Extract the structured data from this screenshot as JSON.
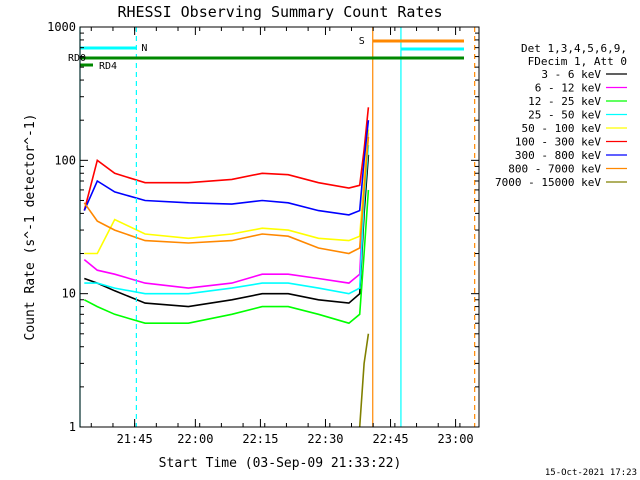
{
  "chart_data": {
    "type": "line",
    "title": "RHESSI Observing Summary Count Rates",
    "xlabel": "Start Time (03-Sep-09 21:33:22)",
    "ylabel": "Count Rate (s^-1 detector^-1)",
    "y_scale": "log",
    "ylim": [
      1,
      1000
    ],
    "xlim_minutes_after_21_33_22": [
      0,
      92
    ],
    "x_tick_labels": [
      "21:45",
      "22:00",
      "22:15",
      "22:30",
      "22:45",
      "23:00"
    ],
    "x_tick_minutes": [
      12.6,
      26.6,
      41.6,
      56.6,
      71.6,
      86.6
    ],
    "y_tick_labels": [
      "1",
      "10",
      "100",
      "1000"
    ],
    "y_tick_values": [
      1,
      10,
      100,
      1000
    ],
    "grid": false,
    "legend_position": "right",
    "legend_header": [
      "Det 1,3,4,5,6,9,",
      "FDecim 1, Att 0"
    ],
    "footer_date": "15-Oct-2021 17:23",
    "x_times_minutes": [
      1,
      4,
      8,
      15,
      25,
      35,
      42,
      48,
      55,
      62,
      64.5,
      65.5,
      66.5
    ],
    "series": [
      {
        "name": "3 - 6 keV",
        "color": "#000000",
        "values": [
          13,
          12,
          10.5,
          8.5,
          8,
          9,
          10,
          10,
          9,
          8.5,
          10,
          40,
          110
        ]
      },
      {
        "name": "6 - 12 keV",
        "color": "#ff00ff",
        "values": [
          18,
          15,
          14,
          12,
          11,
          12,
          14,
          14,
          13,
          12,
          14,
          60,
          160
        ]
      },
      {
        "name": "12 - 25 keV",
        "color": "#00ff00",
        "values": [
          9,
          8,
          7,
          6,
          6,
          7,
          8,
          8,
          7,
          6,
          7,
          20,
          60
        ]
      },
      {
        "name": "25 - 50 keV",
        "color": "#00ffff",
        "values": [
          12,
          12,
          11,
          10,
          10,
          11,
          12,
          12,
          11,
          10,
          11,
          50,
          130
        ]
      },
      {
        "name": "50 - 100 keV",
        "color": "#ffff00",
        "values": [
          20,
          20,
          36,
          28,
          26,
          28,
          31,
          30,
          26,
          25,
          27,
          70,
          170
        ]
      },
      {
        "name": "100 - 300 keV",
        "color": "#ff0000",
        "values": [
          42,
          100,
          80,
          68,
          68,
          72,
          80,
          78,
          68,
          62,
          65,
          120,
          250
        ]
      },
      {
        "name": "300 - 800 keV",
        "color": "#0000ff",
        "values": [
          42,
          70,
          58,
          50,
          48,
          47,
          50,
          48,
          42,
          39,
          42,
          100,
          200
        ]
      },
      {
        "name": "800 - 7000 keV",
        "color": "#ff8800",
        "values": [
          48,
          35,
          30,
          25,
          24,
          25,
          28,
          27,
          22,
          20,
          22,
          60,
          150
        ]
      },
      {
        "name": "7000 - 15000 keV",
        "color": "#808000",
        "values": [
          null,
          null,
          null,
          null,
          null,
          null,
          null,
          null,
          null,
          null,
          1,
          3,
          5
        ]
      }
    ],
    "flags": [
      {
        "label": "N",
        "color": "#00ffff"
      },
      {
        "label": "S",
        "color": "#ff8800"
      },
      {
        "label": "RD0",
        "color": "#008800"
      },
      {
        "label": "RD4",
        "color": "#008800"
      }
    ],
    "vertical_markers": [
      {
        "minute": 0,
        "color": "#00ffff",
        "style": "solid"
      },
      {
        "minute": 13,
        "color": "#00ffff",
        "style": "dashed"
      },
      {
        "minute": 67.5,
        "color": "#ff8800",
        "style": "solid"
      },
      {
        "minute": 74,
        "color": "#00ffff",
        "style": "solid"
      },
      {
        "minute": 91,
        "color": "#ff8800",
        "style": "dashed"
      }
    ]
  }
}
